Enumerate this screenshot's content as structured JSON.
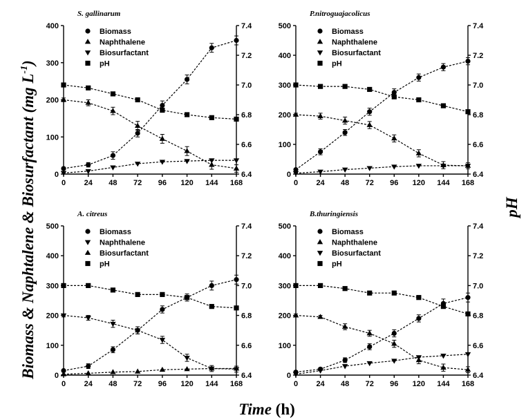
{
  "labels": {
    "ylabel_left_main": "Biomass & Naphtalene & Biosurfactant",
    "ylabel_left_unit": "(mg L",
    "ylabel_left_sup": "-1",
    "ylabel_left_close": ")",
    "ylabel_right": "pH",
    "xlabel_main": "Time",
    "xlabel_unit": " (h)"
  },
  "chart_data": [
    {
      "type": "line",
      "title": "S. gallinarum",
      "x": [
        0,
        24,
        48,
        72,
        96,
        120,
        144,
        168
      ],
      "xticks": [
        "0",
        "24",
        "48",
        "72",
        "96",
        "120",
        "144",
        "168"
      ],
      "ylim": [
        0,
        400
      ],
      "yticks": [
        "0",
        "100",
        "200",
        "300",
        "400"
      ],
      "y2lim": [
        6.4,
        7.4
      ],
      "y2ticks": [
        "6.4",
        "6.6",
        "6.8",
        "7.0",
        "7.2",
        "7.4"
      ],
      "legend": [
        {
          "label": "Biomass",
          "marker": "circle"
        },
        {
          "label": "Naphthalene",
          "marker": "triangle-up"
        },
        {
          "label": "Biosurfactant",
          "marker": "triangle-down"
        },
        {
          "label": "pH",
          "marker": "square"
        }
      ],
      "series": [
        {
          "name": "Biomass",
          "marker": "circle",
          "axis": "left",
          "values": [
            15,
            25,
            50,
            110,
            185,
            255,
            340,
            360
          ],
          "errors": [
            3,
            6,
            10,
            10,
            12,
            12,
            12,
            12
          ]
        },
        {
          "name": "Naphthalene",
          "marker": "triangle-up",
          "axis": "left",
          "values": [
            200,
            192,
            170,
            130,
            95,
            62,
            25,
            15
          ],
          "errors": [
            5,
            8,
            10,
            12,
            12,
            12,
            12,
            10
          ]
        },
        {
          "name": "Biosurfactant",
          "marker": "triangle-down",
          "axis": "left",
          "values": [
            3,
            8,
            18,
            28,
            33,
            35,
            37,
            37
          ],
          "errors": [
            0,
            0,
            0,
            0,
            0,
            0,
            0,
            0
          ]
        },
        {
          "name": "pH",
          "marker": "square",
          "axis": "right",
          "values": [
            7.0,
            6.98,
            6.94,
            6.9,
            6.83,
            6.8,
            6.78,
            6.77
          ],
          "errors": [
            0,
            0,
            0,
            0,
            0,
            0,
            0,
            0
          ]
        }
      ]
    },
    {
      "type": "line",
      "title": "P.nitroguajacolicus",
      "x": [
        0,
        24,
        48,
        72,
        96,
        120,
        144,
        168
      ],
      "xticks": [
        "0",
        "24",
        "48",
        "72",
        "96",
        "120",
        "144",
        "168"
      ],
      "ylim": [
        0,
        500
      ],
      "yticks": [
        "0",
        "100",
        "200",
        "300",
        "400",
        "500"
      ],
      "y2lim": [
        6.4,
        7.4
      ],
      "y2ticks": [
        "6.4",
        "6.6",
        "6.8",
        "7.0",
        "7.2",
        "7.4"
      ],
      "legend": [
        {
          "label": "Biomass",
          "marker": "circle"
        },
        {
          "label": "Naphthalene",
          "marker": "triangle-up"
        },
        {
          "label": "Biosurfactant",
          "marker": "triangle-down"
        },
        {
          "label": "pH",
          "marker": "square"
        }
      ],
      "series": [
        {
          "name": "Biomass",
          "marker": "circle",
          "axis": "left",
          "values": [
            15,
            75,
            140,
            210,
            275,
            325,
            360,
            380
          ],
          "errors": [
            3,
            10,
            10,
            12,
            12,
            12,
            12,
            12
          ]
        },
        {
          "name": "Naphthalene",
          "marker": "triangle-up",
          "axis": "left",
          "values": [
            200,
            195,
            180,
            165,
            120,
            70,
            30,
            28
          ],
          "errors": [
            5,
            10,
            12,
            12,
            12,
            12,
            12,
            10
          ]
        },
        {
          "name": "Biosurfactant",
          "marker": "triangle-down",
          "axis": "left",
          "values": [
            3,
            8,
            15,
            20,
            25,
            28,
            28,
            28
          ],
          "errors": [
            0,
            0,
            0,
            0,
            0,
            0,
            0,
            0
          ]
        },
        {
          "name": "pH",
          "marker": "square",
          "axis": "right",
          "values": [
            7.0,
            6.99,
            6.99,
            6.97,
            6.92,
            6.9,
            6.86,
            6.82
          ],
          "errors": [
            0,
            0,
            0,
            0,
            0,
            0,
            0,
            0
          ]
        }
      ]
    },
    {
      "type": "line",
      "title": "A. citreus",
      "x": [
        0,
        24,
        48,
        72,
        96,
        120,
        144,
        168
      ],
      "xticks": [
        "0",
        "24",
        "48",
        "72",
        "96",
        "120",
        "144",
        "168"
      ],
      "ylim": [
        0,
        500
      ],
      "yticks": [
        "0",
        "100",
        "200",
        "300",
        "400",
        "500"
      ],
      "y2lim": [
        6.4,
        7.4
      ],
      "y2ticks": [
        "6.4",
        "6.6",
        "6.8",
        "7.0",
        "7.2",
        "7.4"
      ],
      "legend": [
        {
          "label": "Biomass",
          "marker": "circle"
        },
        {
          "label": "Naphthalene",
          "marker": "triangle-down"
        },
        {
          "label": "Biosurfactant",
          "marker": "triangle-up"
        },
        {
          "label": "pH",
          "marker": "square"
        }
      ],
      "series": [
        {
          "name": "Biomass",
          "marker": "circle",
          "axis": "left",
          "values": [
            15,
            30,
            85,
            150,
            220,
            260,
            300,
            320
          ],
          "errors": [
            3,
            8,
            10,
            12,
            12,
            12,
            15,
            15
          ]
        },
        {
          "name": "Naphthalene",
          "marker": "triangle-down",
          "axis": "left",
          "values": [
            200,
            192,
            172,
            150,
            118,
            58,
            22,
            20
          ],
          "errors": [
            5,
            8,
            12,
            12,
            12,
            12,
            10,
            10
          ]
        },
        {
          "name": "Biosurfactant",
          "marker": "triangle-up",
          "axis": "left",
          "values": [
            3,
            6,
            10,
            12,
            18,
            20,
            22,
            22
          ],
          "errors": [
            0,
            0,
            0,
            0,
            0,
            0,
            0,
            0
          ]
        },
        {
          "name": "pH",
          "marker": "square",
          "axis": "right",
          "values": [
            7.0,
            7.0,
            6.97,
            6.94,
            6.94,
            6.92,
            6.86,
            6.85
          ],
          "errors": [
            0,
            0,
            0,
            0,
            0,
            0,
            0,
            0
          ]
        }
      ]
    },
    {
      "type": "line",
      "title": "B.thuringiensis",
      "x": [
        0,
        24,
        48,
        72,
        96,
        120,
        144,
        168
      ],
      "xticks": [
        "0",
        "24",
        "48",
        "72",
        "96",
        "120",
        "144",
        "168"
      ],
      "ylim": [
        0,
        500
      ],
      "yticks": [
        "0",
        "100",
        "200",
        "300",
        "400",
        "500"
      ],
      "y2lim": [
        6.4,
        7.4
      ],
      "y2ticks": [
        "6.4",
        "6.6",
        "6.8",
        "7.0",
        "7.2",
        "7.4"
      ],
      "legend": [
        {
          "label": "Biomass",
          "marker": "circle"
        },
        {
          "label": "Naphthalene",
          "marker": "triangle-up"
        },
        {
          "label": "Biosurfactant",
          "marker": "triangle-down"
        },
        {
          "label": "pH",
          "marker": "square"
        }
      ],
      "series": [
        {
          "name": "Biomass",
          "marker": "circle",
          "axis": "left",
          "values": [
            10,
            20,
            50,
            95,
            140,
            190,
            240,
            260
          ],
          "errors": [
            3,
            5,
            8,
            10,
            12,
            12,
            15,
            15
          ]
        },
        {
          "name": "Naphthalene",
          "marker": "triangle-up",
          "axis": "left",
          "values": [
            200,
            195,
            162,
            140,
            105,
            50,
            25,
            18
          ],
          "errors": [
            5,
            5,
            10,
            10,
            12,
            12,
            12,
            10
          ]
        },
        {
          "name": "Biosurfactant",
          "marker": "triangle-down",
          "axis": "left",
          "values": [
            3,
            15,
            30,
            40,
            48,
            60,
            65,
            70
          ],
          "errors": [
            0,
            0,
            0,
            0,
            0,
            0,
            0,
            0
          ]
        },
        {
          "name": "pH",
          "marker": "square",
          "axis": "right",
          "values": [
            7.0,
            7.0,
            6.98,
            6.95,
            6.95,
            6.92,
            6.86,
            6.81
          ],
          "errors": [
            0,
            0,
            0,
            0,
            0,
            0,
            0,
            0
          ]
        }
      ]
    }
  ]
}
